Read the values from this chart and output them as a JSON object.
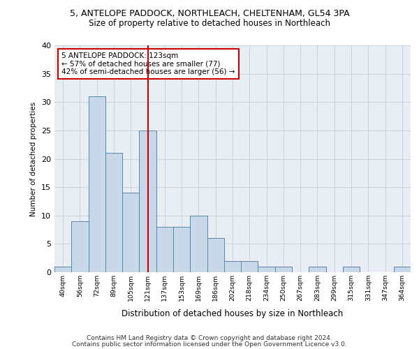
{
  "title1": "5, ANTELOPE PADDOCK, NORTHLEACH, CHELTENHAM, GL54 3PA",
  "title2": "Size of property relative to detached houses in Northleach",
  "xlabel": "Distribution of detached houses by size in Northleach",
  "ylabel": "Number of detached properties",
  "footer1": "Contains HM Land Registry data © Crown copyright and database right 2024.",
  "footer2": "Contains public sector information licensed under the Open Government Licence v3.0.",
  "bin_labels": [
    "40sqm",
    "56sqm",
    "72sqm",
    "89sqm",
    "105sqm",
    "121sqm",
    "137sqm",
    "153sqm",
    "169sqm",
    "186sqm",
    "202sqm",
    "218sqm",
    "234sqm",
    "250sqm",
    "267sqm",
    "283sqm",
    "299sqm",
    "315sqm",
    "331sqm",
    "347sqm",
    "364sqm"
  ],
  "bar_values": [
    1,
    9,
    31,
    21,
    14,
    25,
    8,
    8,
    10,
    6,
    2,
    2,
    1,
    1,
    0,
    1,
    0,
    1,
    0,
    0,
    1
  ],
  "bar_color": "#c8d8e8",
  "bar_edge_color": "#5588aa",
  "property_bin_index": 5,
  "annotation_title": "5 ANTELOPE PADDOCK: 123sqm",
  "annotation_line1": "← 57% of detached houses are smaller (77)",
  "annotation_line2": "42% of semi-detached houses are larger (56) →",
  "vline_color": "#cc0000",
  "annotation_box_color": "#ffffff",
  "annotation_box_edge": "#cc0000",
  "background_color": "#e8eef4",
  "ylim": [
    0,
    40
  ],
  "yticks": [
    0,
    5,
    10,
    15,
    20,
    25,
    30,
    35,
    40
  ]
}
